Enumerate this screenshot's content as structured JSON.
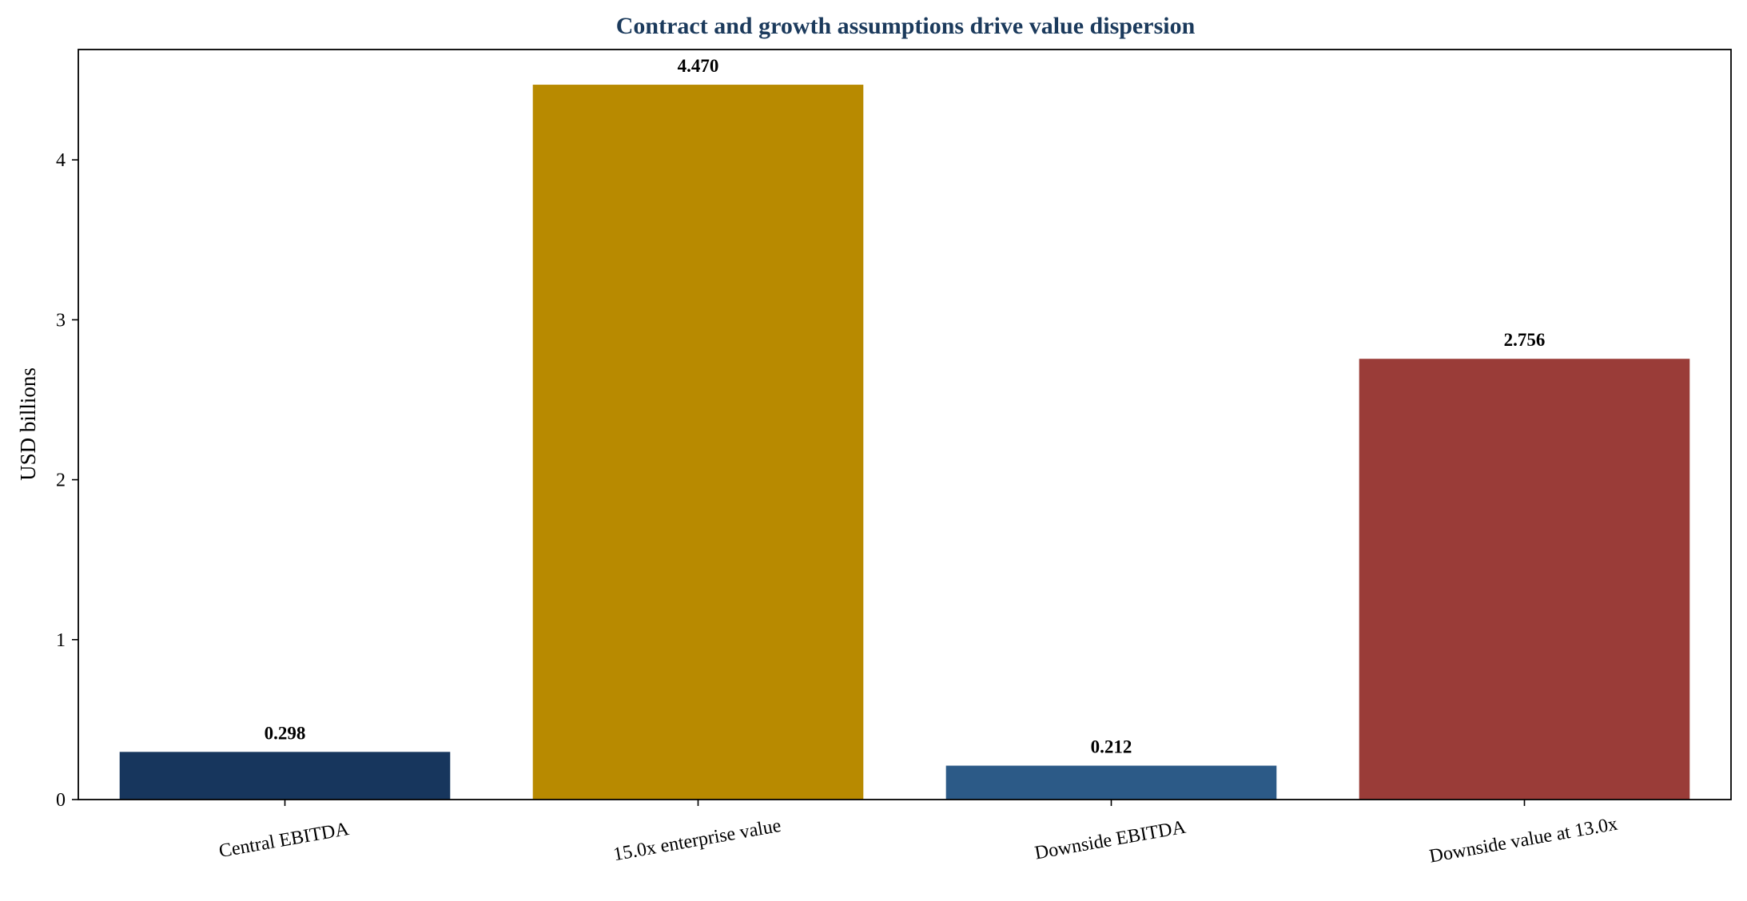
{
  "chart_data": {
    "type": "bar",
    "title": "Contract and growth assumptions drive value dispersion",
    "xlabel": "",
    "ylabel": "USD billions",
    "categories": [
      "Central EBITDA",
      "15.0x enterprise value",
      "Downside EBITDA",
      "Downside value at 13.0x"
    ],
    "values": [
      0.298,
      4.47,
      0.212,
      2.756
    ],
    "value_labels": [
      "0.298",
      "4.470",
      "0.212",
      "2.756"
    ],
    "colors": [
      "#17365d",
      "#b88a00",
      "#2c5a87",
      "#9a3c38"
    ],
    "ylim": [
      0,
      4.69
    ],
    "yticks": [
      0,
      1,
      2,
      3,
      4
    ],
    "grid": false,
    "legend": "none"
  }
}
